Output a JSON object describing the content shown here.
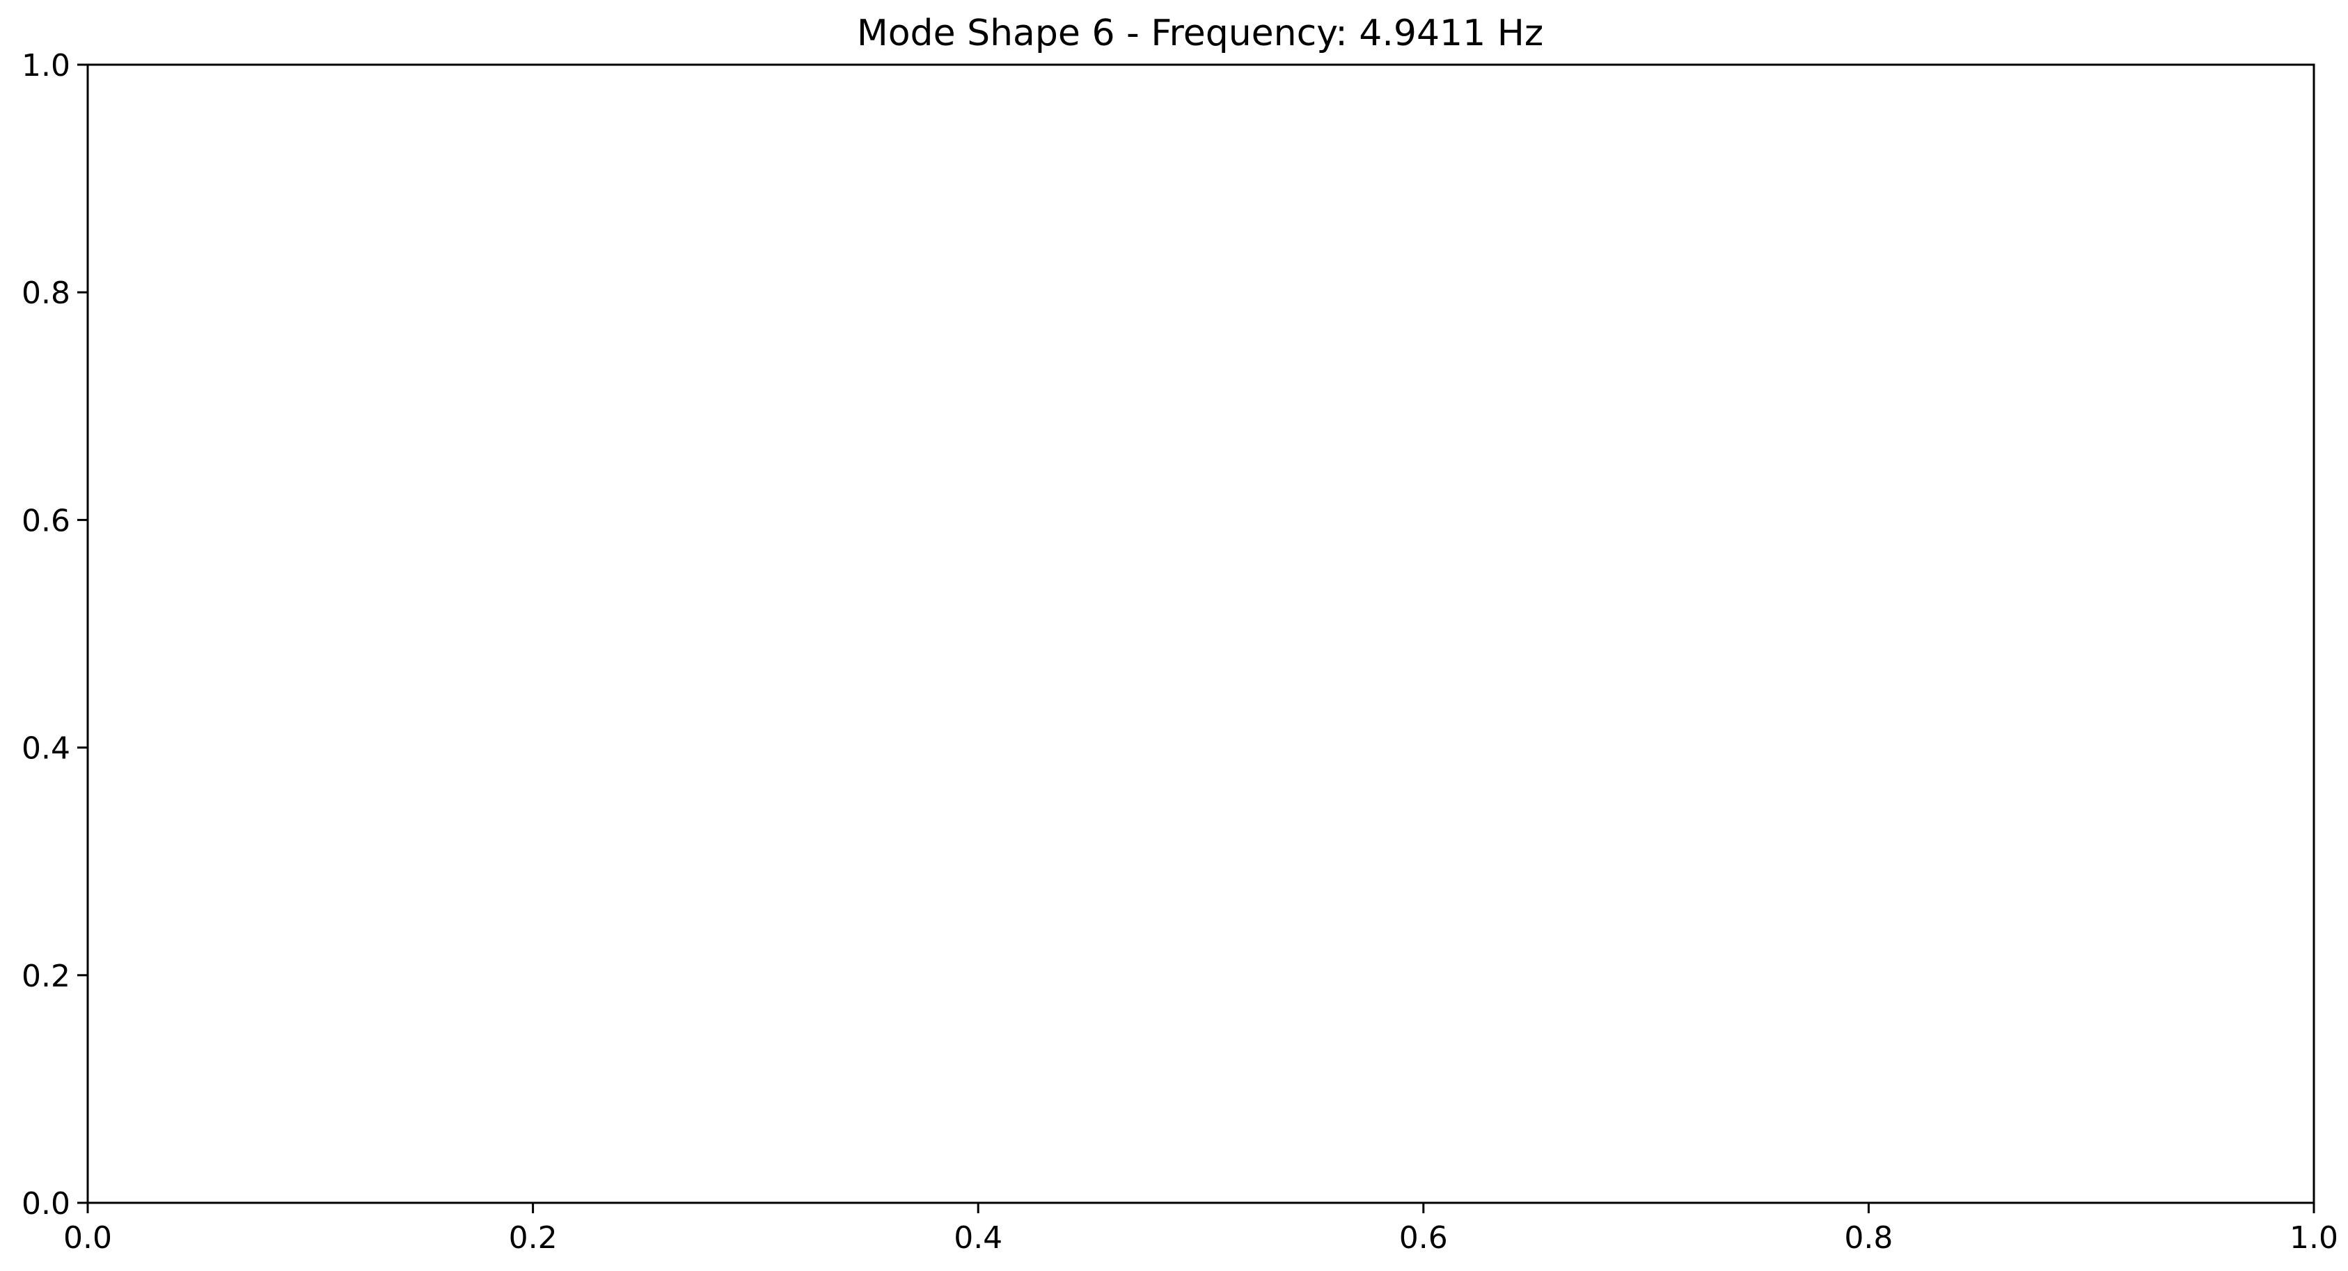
{
  "chart_data": {
    "type": "line",
    "title": "Mode Shape 6 - Frequency: 4.9411 Hz",
    "xlabel": "",
    "ylabel": "",
    "xlim": [
      0.0,
      1.0
    ],
    "ylim": [
      0.0,
      1.0
    ],
    "xticks": [
      0.0,
      0.2,
      0.4,
      0.6,
      0.8,
      1.0
    ],
    "xtick_labels": [
      "0.0",
      "0.2",
      "0.4",
      "0.6",
      "0.8",
      "1.0"
    ],
    "yticks": [
      0.0,
      0.2,
      0.4,
      0.6,
      0.8,
      1.0
    ],
    "ytick_labels": [
      "0.0",
      "0.2",
      "0.4",
      "0.6",
      "0.8",
      "1.0"
    ],
    "grid": false,
    "series": []
  },
  "colors": {
    "axis": "#000000",
    "background": "#ffffff"
  }
}
